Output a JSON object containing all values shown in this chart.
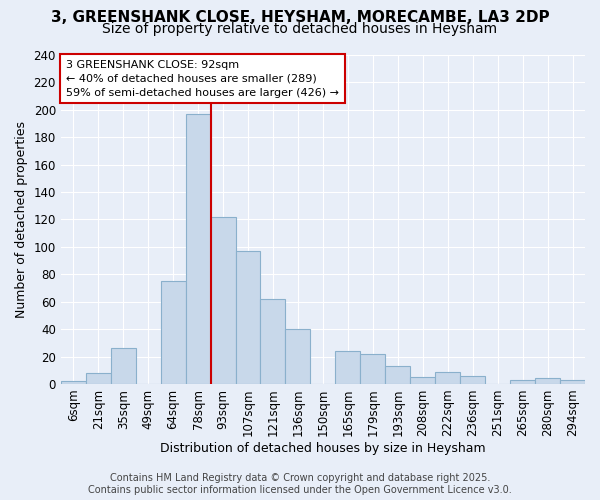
{
  "title_line1": "3, GREENSHANK CLOSE, HEYSHAM, MORECAMBE, LA3 2DP",
  "title_line2": "Size of property relative to detached houses in Heysham",
  "xlabel": "Distribution of detached houses by size in Heysham",
  "ylabel": "Number of detached properties",
  "categories": [
    "6sqm",
    "21sqm",
    "35sqm",
    "49sqm",
    "64sqm",
    "78sqm",
    "93sqm",
    "107sqm",
    "121sqm",
    "136sqm",
    "150sqm",
    "165sqm",
    "179sqm",
    "193sqm",
    "208sqm",
    "222sqm",
    "236sqm",
    "251sqm",
    "265sqm",
    "280sqm",
    "294sqm"
  ],
  "values": [
    2,
    8,
    26,
    0,
    75,
    197,
    122,
    97,
    62,
    40,
    0,
    24,
    22,
    13,
    5,
    9,
    6,
    0,
    3,
    4,
    3
  ],
  "bar_color": "#c8d8ea",
  "bar_edge_color": "#8ab0cc",
  "annotation_text": "3 GREENSHANK CLOSE: 92sqm\n← 40% of detached houses are smaller (289)\n59% of semi-detached houses are larger (426) →",
  "vline_color": "#cc0000",
  "annotation_box_color": "#ffffff",
  "annotation_box_edge": "#cc0000",
  "footer_text": "Contains HM Land Registry data © Crown copyright and database right 2025.\nContains public sector information licensed under the Open Government Licence v3.0.",
  "background_color": "#e8eef8",
  "ylim": [
    0,
    240
  ],
  "yticks": [
    0,
    20,
    40,
    60,
    80,
    100,
    120,
    140,
    160,
    180,
    200,
    220,
    240
  ],
  "title_fontsize": 11,
  "subtitle_fontsize": 10,
  "axis_label_fontsize": 9,
  "tick_fontsize": 8.5,
  "annotation_fontsize": 8,
  "footer_fontsize": 7
}
